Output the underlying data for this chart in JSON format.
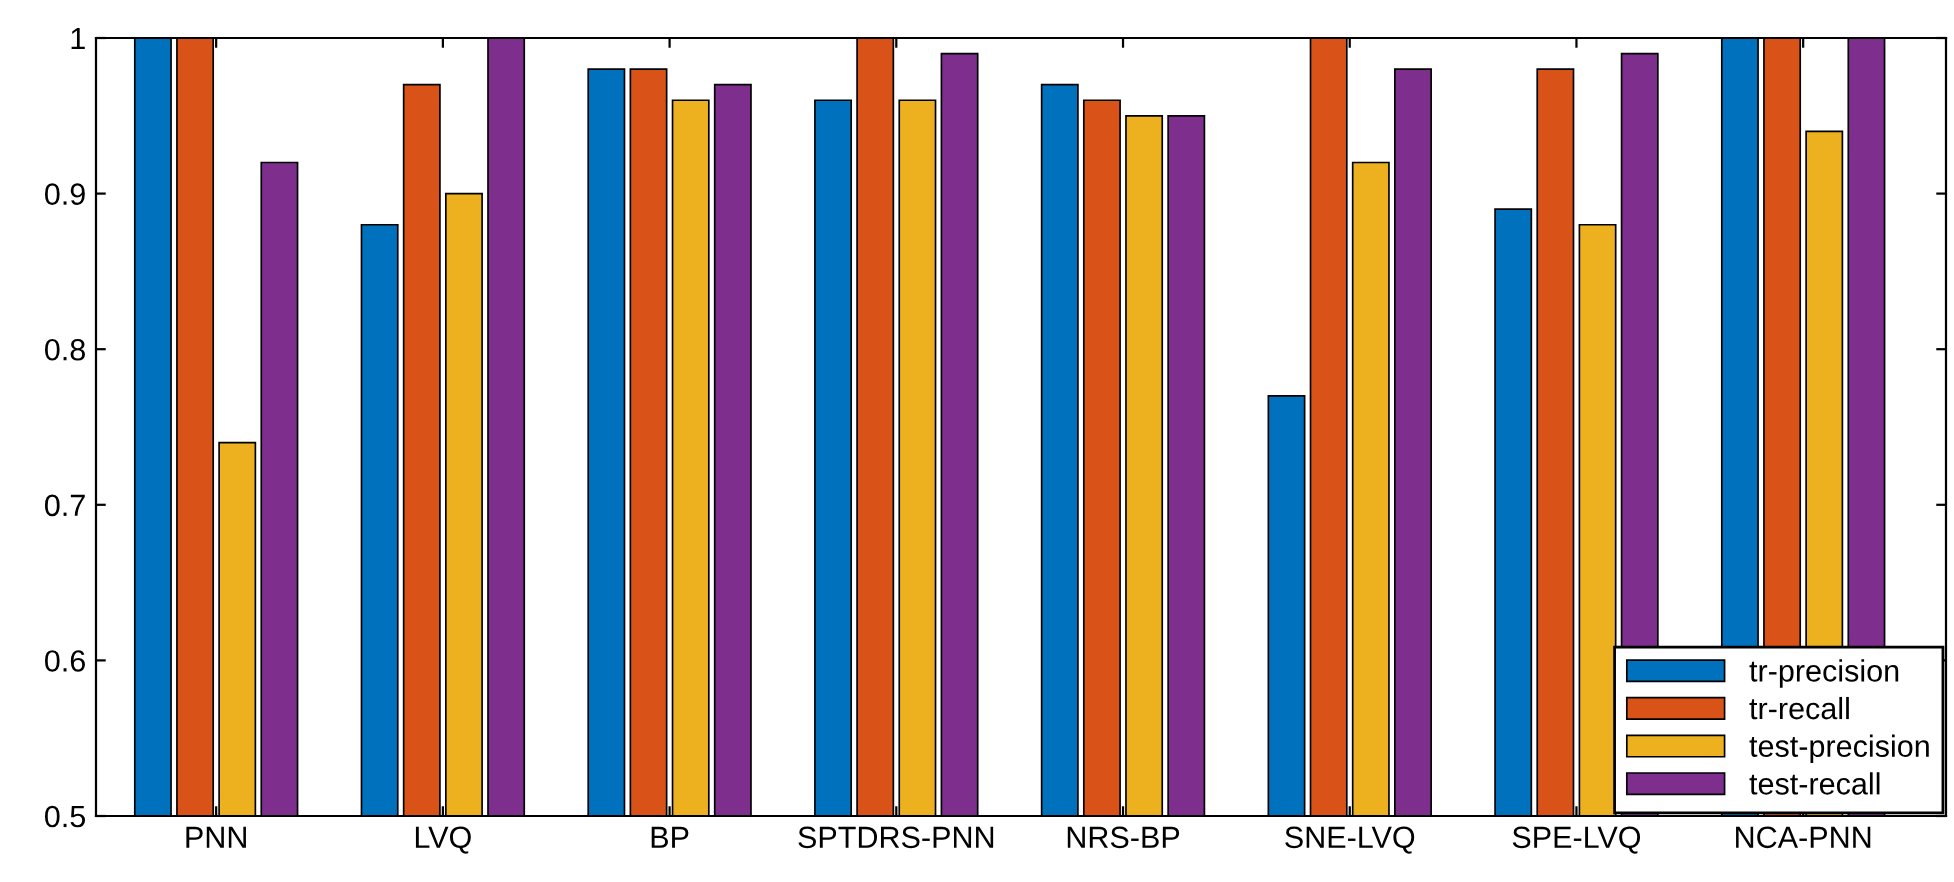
{
  "chart_data": {
    "type": "bar",
    "categories": [
      "PNN",
      "LVQ",
      "BP",
      "SPTDRS-PNN",
      "NRS-BP",
      "SNE-LVQ",
      "SPE-LVQ",
      "NCA-PNN"
    ],
    "series": [
      {
        "name": "tr-precision",
        "color": "#0072bd",
        "values": [
          1,
          0.88,
          0.98,
          0.96,
          0.97,
          0.77,
          0.89,
          1
        ]
      },
      {
        "name": "tr-recall",
        "color": "#d95319",
        "values": [
          1,
          0.97,
          0.98,
          1,
          0.96,
          1,
          0.98,
          1
        ]
      },
      {
        "name": "test-precision",
        "color": "#edb120",
        "values": [
          0.74,
          0.9,
          0.96,
          0.96,
          0.95,
          0.92,
          0.88,
          0.94
        ]
      },
      {
        "name": "test-recall",
        "color": "#7e2f8e",
        "values": [
          0.92,
          1,
          0.97,
          0.99,
          0.95,
          0.98,
          0.99,
          1
        ]
      }
    ],
    "ylim": [
      0.5,
      1
    ],
    "yticks": [
      0.5,
      0.6,
      0.7,
      0.8,
      0.9,
      1
    ],
    "grid": false,
    "legend": "bottom right"
  }
}
